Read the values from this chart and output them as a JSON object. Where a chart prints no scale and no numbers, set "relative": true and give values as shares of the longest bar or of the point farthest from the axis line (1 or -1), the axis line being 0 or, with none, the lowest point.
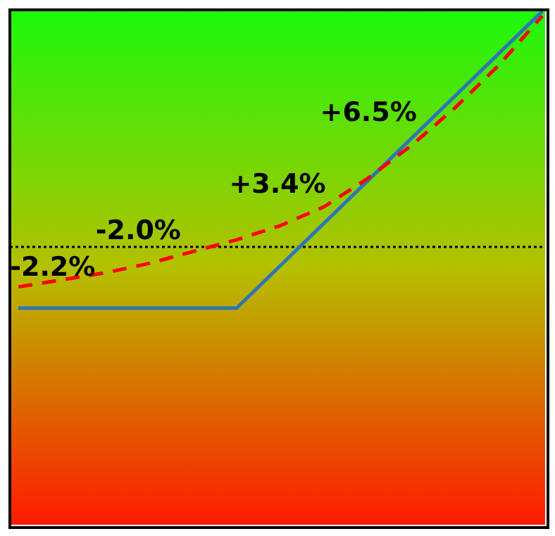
{
  "chart_data": {
    "type": "line",
    "relative": true,
    "categories": [
      null,
      null,
      null,
      null,
      null,
      null,
      null,
      null,
      null,
      null,
      null,
      null,
      null
    ],
    "series": [
      {
        "color": "#2e75b6",
        "line_style": "solid",
        "values": [
          -0.26,
          null,
          null,
          null,
          null,
          -0.26,
          null,
          null,
          null,
          null,
          null,
          null,
          1
        ]
      },
      {
        "color": "#ff0000",
        "line_style": "dashed",
        "values": [
          -0.17,
          -0.14,
          -0.11,
          -0.07,
          -0.02,
          0.03,
          0.09,
          0.17,
          0.29,
          0.43,
          0.59,
          0.77,
          0.98
        ]
      }
    ],
    "ref_lines": [
      {
        "axis": "y",
        "value": 0,
        "color": "#000000",
        "line_style": "dotted"
      }
    ],
    "annotations": [
      "-2.2%",
      "-2.0%",
      "+3.4%",
      "+6.5%"
    ],
    "marker": "none"
  }
}
